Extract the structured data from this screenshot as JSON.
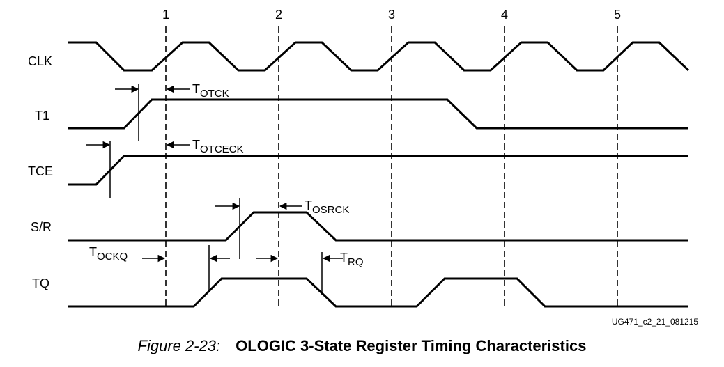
{
  "edges": [
    "1",
    "2",
    "3",
    "4",
    "5"
  ],
  "signals": [
    "CLK",
    "T1",
    "TCE",
    "S/R",
    "TQ"
  ],
  "timing": [
    {
      "main": "T",
      "sub": "OTCK"
    },
    {
      "main": "T",
      "sub": "OTCECK"
    },
    {
      "main": "T",
      "sub": "OSRCK"
    },
    {
      "main": "T",
      "sub": "OCKQ"
    },
    {
      "main": "T",
      "sub": "RQ"
    }
  ],
  "doc_id": "UG471_c2_21_081215",
  "caption": {
    "number": "Figure 2-23:",
    "title": "OLOGIC 3-State Register Timing Characteristics"
  }
}
